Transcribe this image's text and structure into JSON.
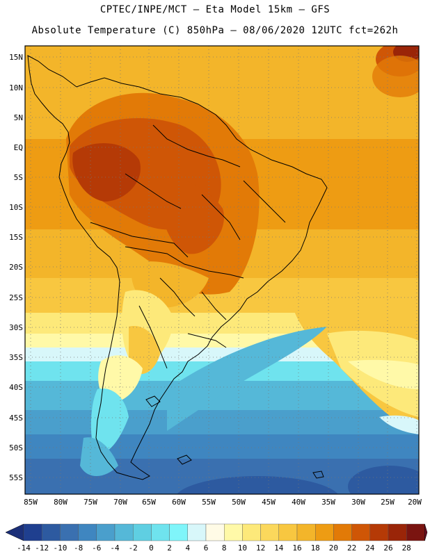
{
  "header": {
    "line1": "CPTEC/INPE/MCT –   Eta Model 15km – GFS",
    "line2": "Absolute Temperature (C) 850hPa – 08/06/2020 12UTC fct=262h"
  },
  "map": {
    "lat_labels": [
      "15N",
      "10N",
      "5N",
      "EQ",
      "5S",
      "10S",
      "15S",
      "20S",
      "25S",
      "30S",
      "35S",
      "40S",
      "45S",
      "50S",
      "55S"
    ],
    "lon_labels": [
      "85W",
      "80W",
      "75W",
      "70W",
      "65W",
      "60W",
      "55W",
      "50W",
      "45W",
      "40W",
      "35W",
      "30W",
      "25W",
      "20W"
    ]
  },
  "colorbar": {
    "labels": [
      "-14",
      "-12",
      "-10",
      "-8",
      "-6",
      "-4",
      "-2",
      "0",
      "2",
      "4",
      "6",
      "8",
      "10",
      "12",
      "14",
      "16",
      "18",
      "20",
      "22",
      "24",
      "26",
      "28"
    ],
    "colors": [
      "#1f3f8f",
      "#2d5aa0",
      "#3a70b0",
      "#3f86c0",
      "#4a9fcc",
      "#55b8d8",
      "#5fcfe2",
      "#6fe3ee",
      "#7ff5fa",
      "#d8f7fa",
      "#fffbe6",
      "#fff9a8",
      "#fde97a",
      "#fbd85c",
      "#f8c740",
      "#f3b52a",
      "#ee9c13",
      "#e27a07",
      "#cf5606",
      "#b53a06",
      "#9a2508",
      "#7a1410"
    ],
    "arrow_low": "#1b2f78",
    "arrow_high": "#6a0b1f"
  }
}
